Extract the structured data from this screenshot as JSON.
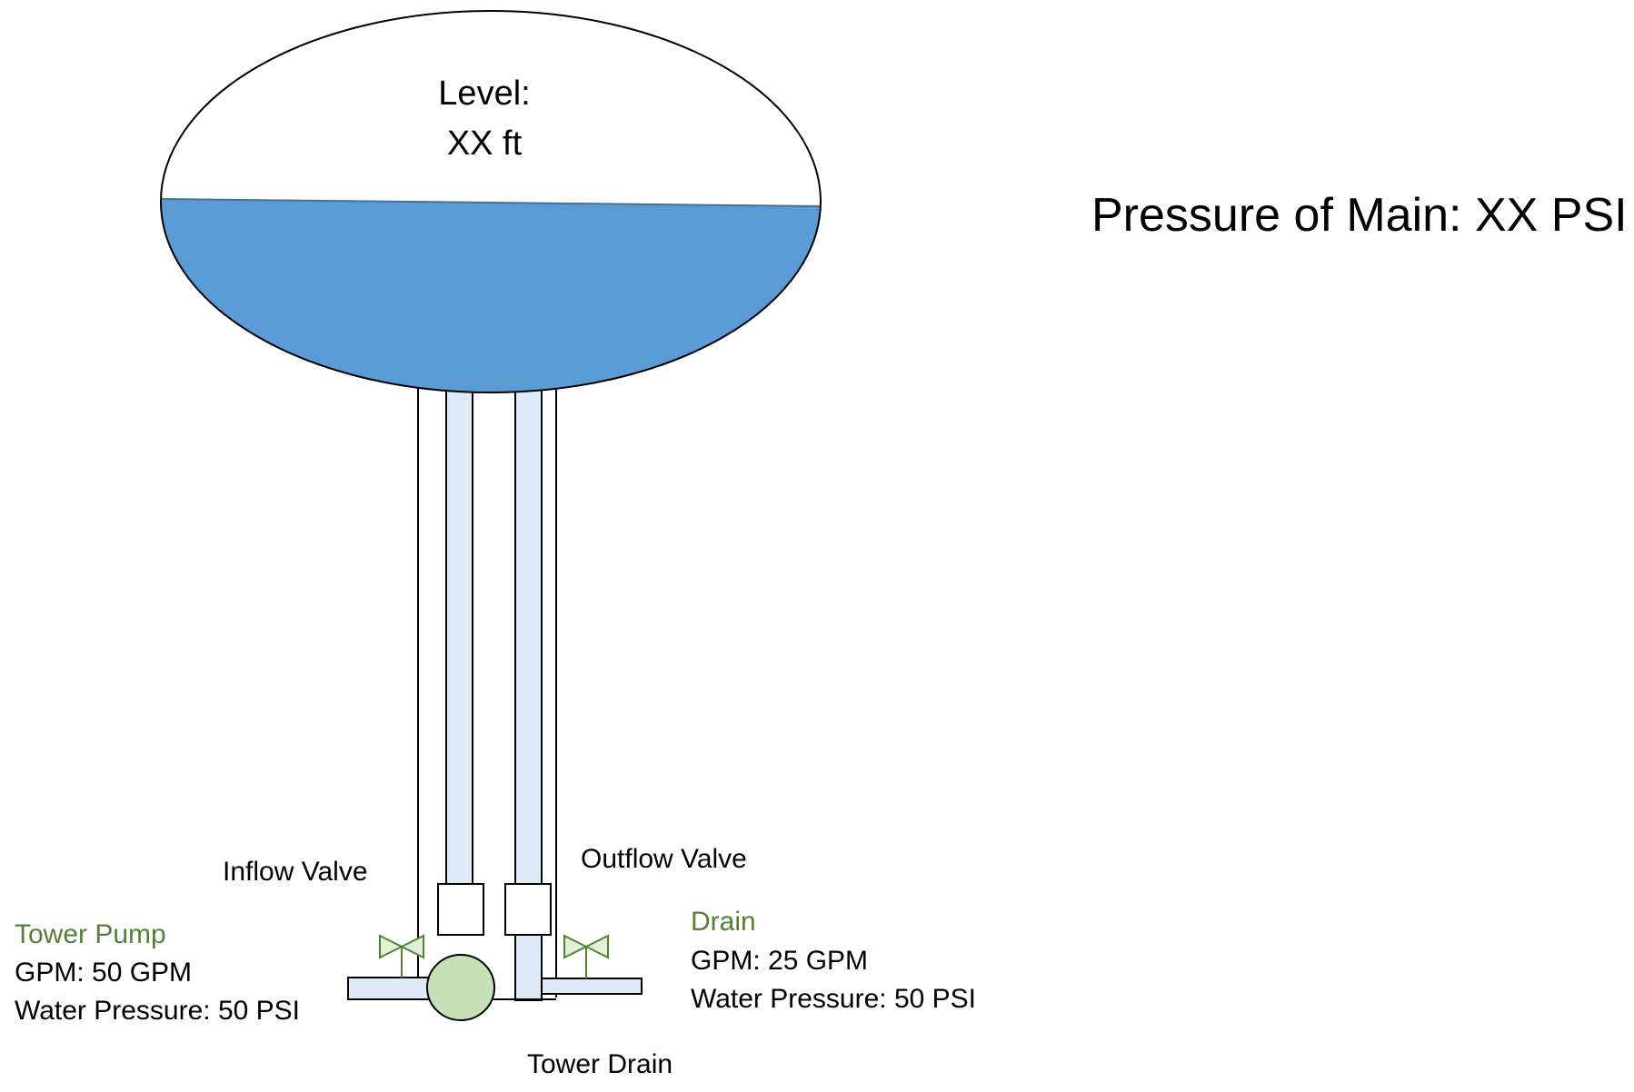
{
  "tank": {
    "level_label": "Level:",
    "level_value": "XX ft",
    "fill_fraction": 0.49
  },
  "main_pressure": "Pressure of Main: XX PSI",
  "inflow_valve": {
    "label": "Inflow Valve"
  },
  "outflow_valve": {
    "label": "Outflow Valve"
  },
  "tower_pump": {
    "title": "Tower Pump",
    "gpm": "GPM: 50 GPM",
    "pressure": "Water Pressure: 50 PSI"
  },
  "drain": {
    "title": "Drain",
    "gpm": "GPM: 25 GPM",
    "pressure": "Water Pressure: 50 PSI"
  },
  "tower_drain": {
    "label": "Tower Drain"
  },
  "colors": {
    "water": "#5b9bd5",
    "water_edge": "#41719c",
    "pipe": "#deebf7",
    "pump": "#c5e0b4",
    "valve": "#e2f0d9",
    "green_text": "#548235",
    "line": "#000000"
  }
}
